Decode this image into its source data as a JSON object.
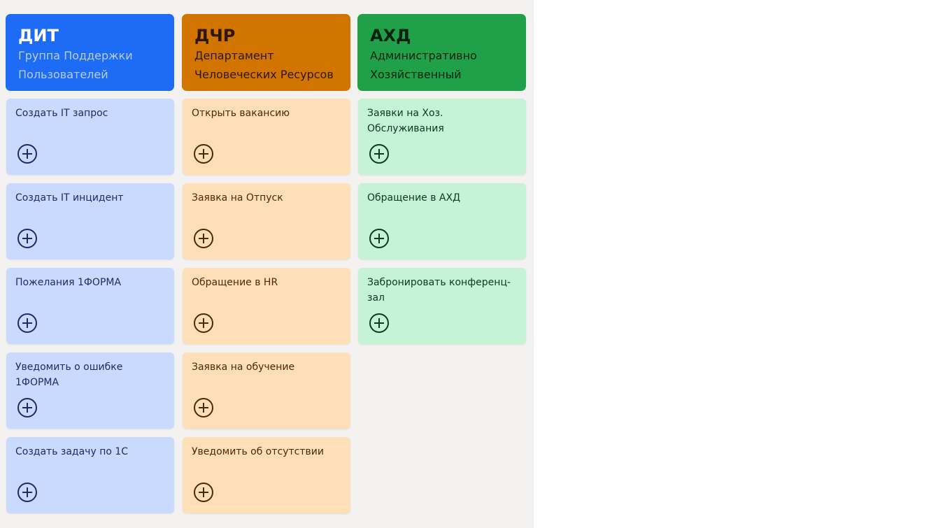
{
  "columns": [
    {
      "title": "ДИТ",
      "subtitle": "Группа Поддержки Пользователей",
      "tiles": [
        "Создать IT запрос",
        "Создать IT инцидент",
        "Пожелания 1ФОРМА",
        "Уведомить о ошибке 1ФОРМА",
        "Создать задачу по 1С"
      ]
    },
    {
      "title": "ДЧР",
      "subtitle": "Департамент Человеческих Ресурсов",
      "tiles": [
        "Открыть вакансию",
        "Заявка на Отпуск",
        "Обращение в HR",
        "Заявка на обучение",
        "Уведомить об отсутствии"
      ]
    },
    {
      "title": "АХД",
      "subtitle": "Административно Хозяйственный",
      "tiles": [
        "Заявки на Хоз. Обслуживания",
        "Обращение в АХД",
        "Забронировать конференц-зал"
      ]
    }
  ]
}
